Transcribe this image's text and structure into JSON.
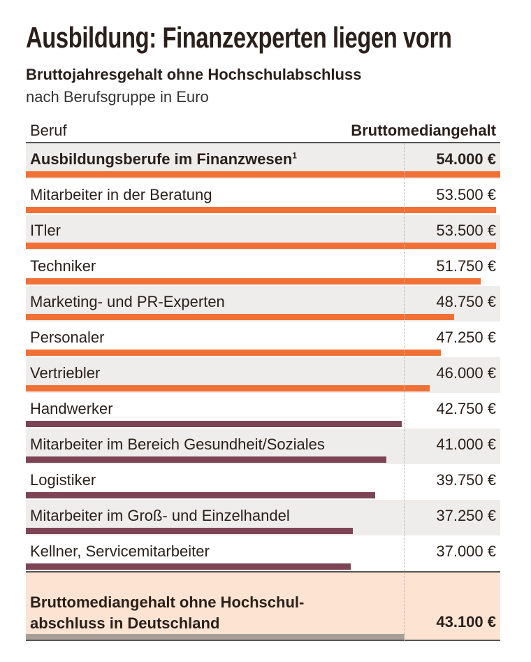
{
  "title": "Ausbildung: Finanzexperten liegen vorn",
  "subtitle": "Bruttojahresgehalt ohne Hochschulabschluss",
  "subtitle2": "nach Berufsgruppe in Euro",
  "colors": {
    "above": "#f07036",
    "below": "#7d4456",
    "average": "#a89e98",
    "text": "#2a1f1a"
  },
  "chart_data": {
    "type": "bar",
    "orientation": "horizontal",
    "columns": [
      "Beruf",
      "Bruttomediangehalt"
    ],
    "categories": [
      "Ausbildungsberufe im Finanzwesen",
      "Mitarbeiter in der Beratung",
      "ITler",
      "Techniker",
      "Marketing- und PR-Experten",
      "Personaler",
      "Vertriebler",
      "Handwerker",
      "Mitarbeiter im Bereich Gesundheit/Soziales",
      "Logistiker",
      "Mitarbeiter im Groß- und Einzelhandel",
      "Kellner, Servicemitarbeiter"
    ],
    "footnote_marks": [
      "1",
      "",
      "",
      "",
      "",
      "",
      "",
      "",
      "",
      "",
      "",
      ""
    ],
    "values": [
      54000,
      53500,
      53500,
      51750,
      48750,
      47250,
      46000,
      42750,
      41000,
      39750,
      37250,
      37000
    ],
    "labels": [
      "54.000 €",
      "53.500 €",
      "53.500 €",
      "51.750 €",
      "48.750 €",
      "47.250 €",
      "46.000 €",
      "42.750 €",
      "41.000 €",
      "39.750 €",
      "37.250 €",
      "37.000 €"
    ],
    "xlim": [
      0,
      54000
    ],
    "average": {
      "label_line1": "Bruttomediangehalt ohne Hochschul-",
      "label_line2": "abschluss in Deutschland",
      "value": 43100,
      "label": "43.100 €"
    }
  }
}
